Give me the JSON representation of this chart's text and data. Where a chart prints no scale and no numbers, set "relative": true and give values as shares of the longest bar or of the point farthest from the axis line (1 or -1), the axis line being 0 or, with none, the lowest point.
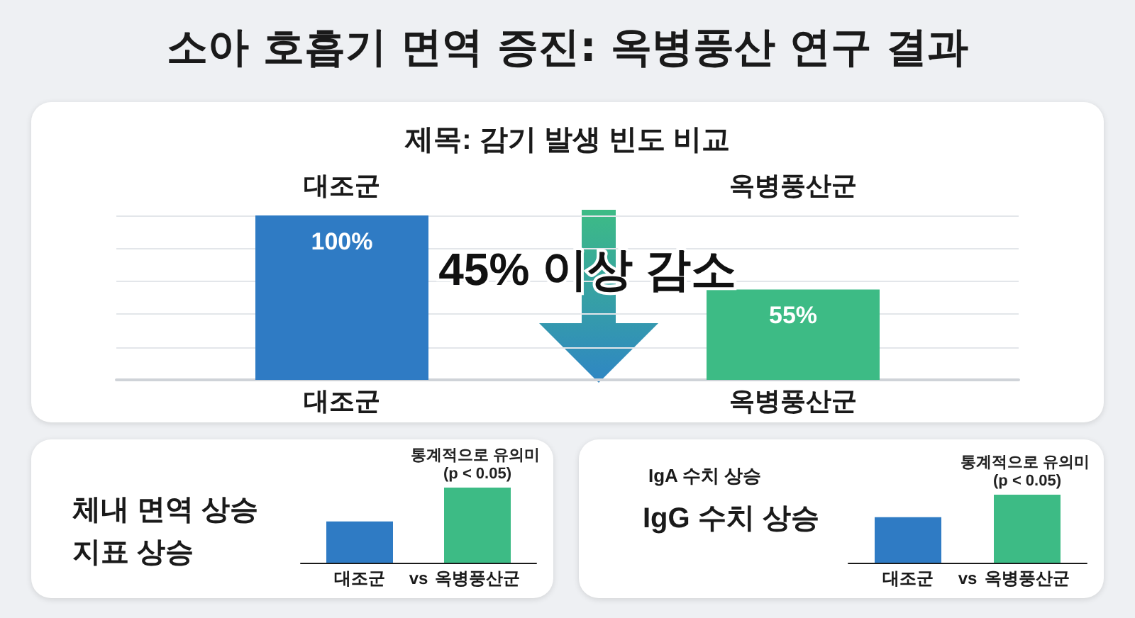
{
  "chart_data": [
    {
      "type": "bar",
      "title": "소아 호흡기 면역 증진: 옥병풍산 연구 결과",
      "subtitle": "제목: 감기 발생 빈도 비교",
      "categories": [
        "대조군",
        "옥병풍산군"
      ],
      "values": [
        100,
        55
      ],
      "colors": [
        "#2f7bc4",
        "#3dbb85"
      ],
      "value_labels": [
        "100%",
        "55%"
      ],
      "ylim": [
        0,
        100
      ],
      "yticks": [
        {
          "value": 0,
          "label": null
        },
        {
          "value": 20,
          "label": null
        },
        {
          "value": 40,
          "label": null
        },
        {
          "value": 60,
          "label": null
        },
        {
          "value": 80,
          "label": null
        },
        {
          "value": 100,
          "label": null
        }
      ],
      "tick_labels": "x",
      "grid": "y",
      "annotations": [
        "45% 이상 감소",
        "대조군",
        "옥병풍산군"
      ]
    },
    {
      "type": "bar",
      "title": "체내 면역 상승 지표 상승",
      "categories": [
        "대조군",
        "옥병풍산군"
      ],
      "values": [
        0.55,
        1
      ],
      "colors": [
        "#2f7bc4",
        "#3dbb85"
      ],
      "relative": true,
      "annotations": [
        "vs",
        {
          "text": "통계적으로 유의미 (p < 0.05)",
          "x": "옥병풍산군",
          "y": 1
        }
      ]
    },
    {
      "type": "bar",
      "title": "IgG 수치 상승",
      "subtitle": "IgA 수치 상승",
      "categories": [
        "대조군",
        "옥병풍산군"
      ],
      "values": [
        0.67,
        1
      ],
      "colors": [
        "#2f7bc4",
        "#3dbb85"
      ],
      "relative": true,
      "annotations": [
        "vs",
        {
          "text": "통계적으로 유의미 (p < 0.05)",
          "x": "옥병풍산군",
          "y": 1
        }
      ]
    }
  ]
}
